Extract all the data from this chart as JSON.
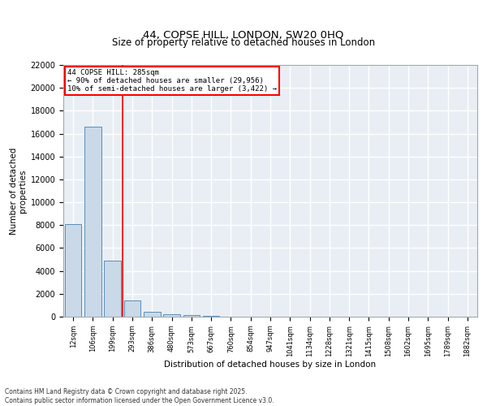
{
  "title1": "44, COPSE HILL, LONDON, SW20 0HQ",
  "title2": "Size of property relative to detached houses in London",
  "xlabel": "Distribution of detached houses by size in London",
  "ylabel": "Number of detached\nproperties",
  "categories": [
    "12sqm",
    "106sqm",
    "199sqm",
    "293sqm",
    "386sqm",
    "480sqm",
    "573sqm",
    "667sqm",
    "760sqm",
    "854sqm",
    "947sqm",
    "1041sqm",
    "1134sqm",
    "1228sqm",
    "1321sqm",
    "1415sqm",
    "1508sqm",
    "1602sqm",
    "1695sqm",
    "1789sqm",
    "1882sqm"
  ],
  "values": [
    8100,
    16600,
    4900,
    1400,
    420,
    220,
    110,
    55,
    30,
    15,
    10,
    5,
    3,
    2,
    1,
    1,
    1,
    0,
    0,
    0,
    0
  ],
  "bar_color": "#c9d9e8",
  "bar_edge_color": "#5b8db8",
  "vline_label": "44 COPSE HILL: 285sqm",
  "annotation_line1": "← 90% of detached houses are smaller (29,956)",
  "annotation_line2": "10% of semi-detached houses are larger (3,422) →",
  "annotation_box_color": "#ff0000",
  "ylim": [
    0,
    22000
  ],
  "yticks": [
    0,
    2000,
    4000,
    6000,
    8000,
    10000,
    12000,
    14000,
    16000,
    18000,
    20000,
    22000
  ],
  "background_color": "#e8eef4",
  "grid_color": "#ffffff",
  "footer1": "Contains HM Land Registry data © Crown copyright and database right 2025.",
  "footer2": "Contains public sector information licensed under the Open Government Licence v3.0."
}
